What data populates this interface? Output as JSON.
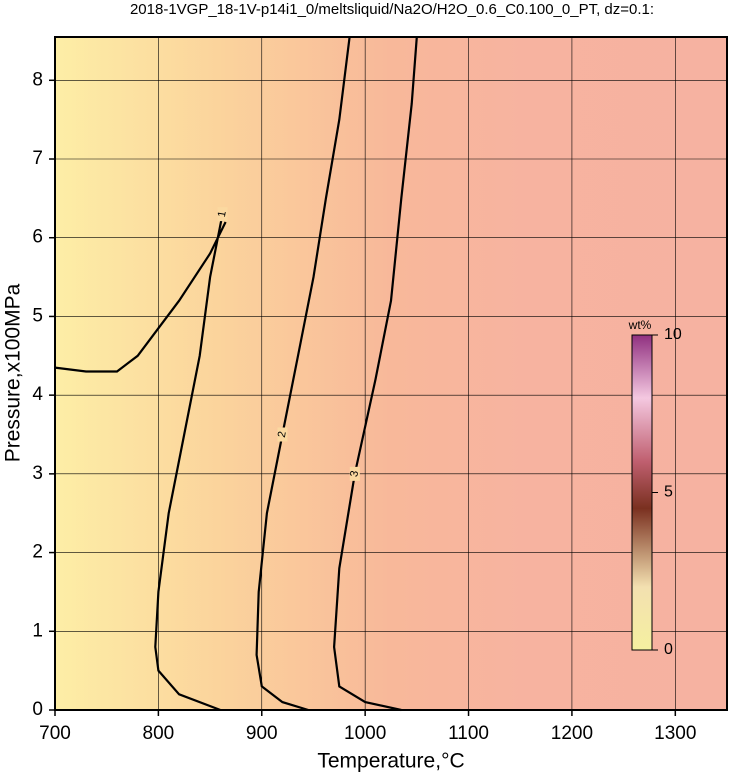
{
  "chart_data": {
    "type": "contour",
    "title": "2018-1VGP_18-1V-p14i1_0/meltsliquid/Na2O/H2O_0.6_C0.100_0_PT, dz=0.1:",
    "x_label": "Temperature,°C",
    "y_label": "Pressure,x100MPa",
    "xlim": [
      700,
      1350
    ],
    "ylim": [
      0,
      8.55
    ],
    "xticks": [
      700,
      800,
      900,
      1000,
      1100,
      1200,
      1300
    ],
    "yticks": [
      0,
      1,
      2,
      3,
      4,
      5,
      6,
      7,
      8
    ],
    "grid": true,
    "contours": [
      {
        "level": 1,
        "color": "#000000",
        "x": [
          860,
          820,
          800,
          797,
          800,
          810,
          825,
          840,
          850,
          862,
          null,
          700,
          730,
          760,
          780,
          820,
          850,
          865
        ],
        "y": [
          0,
          0.2,
          0.5,
          0.8,
          1.5,
          2.5,
          3.5,
          4.5,
          5.5,
          6.3,
          null,
          4.35,
          4.3,
          4.3,
          4.5,
          5.2,
          5.8,
          6.2
        ]
      },
      {
        "level": 2,
        "color": "#000000",
        "x": [
          945,
          920,
          900,
          895,
          897,
          905,
          920,
          935,
          950,
          962,
          975,
          985
        ],
        "y": [
          0,
          0.1,
          0.3,
          0.7,
          1.5,
          2.5,
          3.5,
          4.5,
          5.5,
          6.5,
          7.5,
          8.55
        ]
      },
      {
        "level": 3,
        "color": "#000000",
        "x": [
          1035,
          1000,
          975,
          970,
          975,
          990,
          1010,
          1025,
          1035,
          1045,
          1050
        ],
        "y": [
          0,
          0.1,
          0.3,
          0.8,
          1.8,
          3,
          4.2,
          5.2,
          6.5,
          7.7,
          8.55
        ]
      }
    ],
    "colorbar": {
      "label": "wt%",
      "lim": [
        0,
        10
      ],
      "ticks": [
        0,
        5,
        10
      ]
    }
  }
}
